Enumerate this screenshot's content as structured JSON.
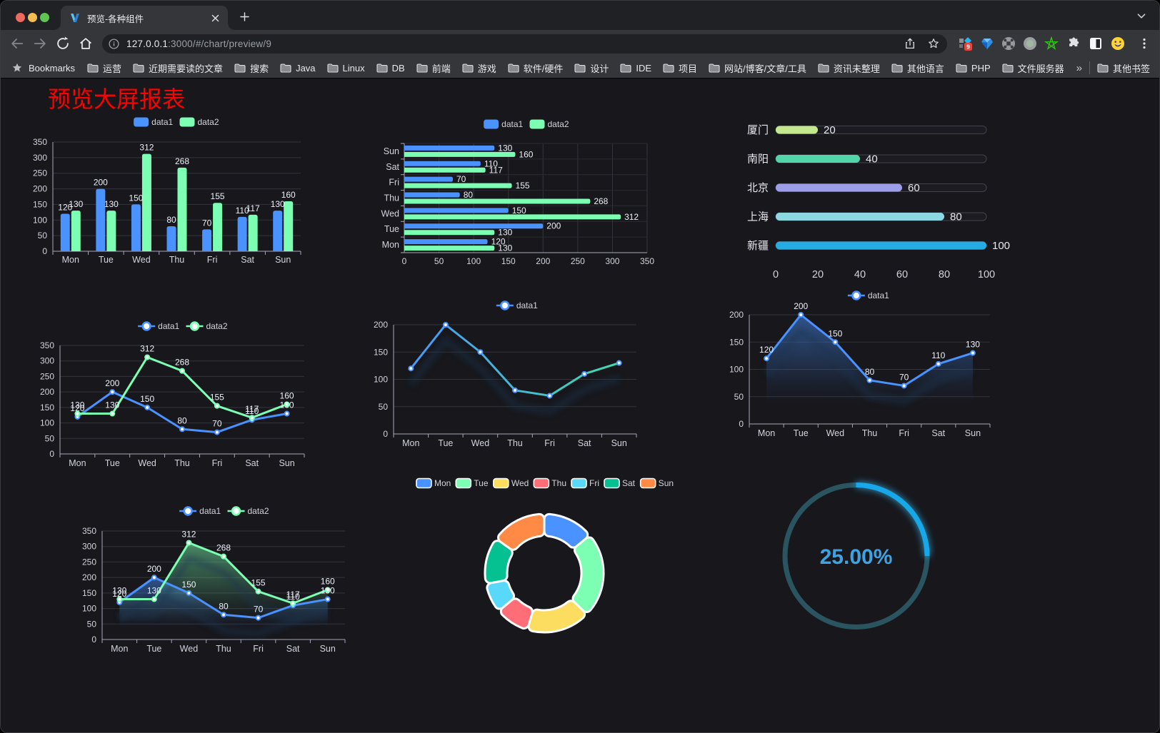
{
  "browser": {
    "tab_title": "预览-各种组件",
    "url_host": "127.0.0.1",
    "url_rest": ":3000/#/chart/preview/9",
    "extension_badge": "9",
    "bookmarks_caption": "Bookmarks",
    "bookmarks": [
      "运营",
      "近期需要读的文章",
      "搜索",
      "Java",
      "Linux",
      "DB",
      "前端",
      "游戏",
      "软件/硬件",
      "设计",
      "IDE",
      "项目",
      "网站/博客/文章/工具",
      "资讯未整理",
      "其他语言",
      "PHP",
      "文件服务器"
    ],
    "bookmarks_overflow": "»",
    "other_bookmarks": "其他书签"
  },
  "page": {
    "title": "预览大屏报表",
    "title_color": "#fe0000",
    "background": "#17171c"
  },
  "palette": {
    "blue": "#4992ff",
    "green": "#7cffb2",
    "yellow": "#fddd60",
    "red": "#ff6e76",
    "cyan": "#58d9f9",
    "teal": "#05c091",
    "orange": "#ff8a45"
  },
  "chart_data": [
    {
      "id": "bar-grouped",
      "type": "bar",
      "categories": [
        "Mon",
        "Tue",
        "Wed",
        "Thu",
        "Fri",
        "Sat",
        "Sun"
      ],
      "series": [
        {
          "name": "data1",
          "color": "#4992ff",
          "values": [
            120,
            200,
            150,
            80,
            70,
            110,
            130
          ]
        },
        {
          "name": "data2",
          "color": "#7cffb2",
          "values": [
            130,
            130,
            312,
            268,
            155,
            117,
            160
          ]
        }
      ],
      "ylim": [
        0,
        350
      ],
      "ystep": 50,
      "legend_position": "top",
      "grid": true
    },
    {
      "id": "bar-horizontal",
      "type": "bar-horizontal",
      "categories": [
        "Mon",
        "Tue",
        "Wed",
        "Thu",
        "Fri",
        "Sat",
        "Sun"
      ],
      "series": [
        {
          "name": "data1",
          "color": "#4992ff",
          "values": [
            120,
            200,
            150,
            80,
            70,
            110,
            130
          ]
        },
        {
          "name": "data2",
          "color": "#7cffb2",
          "values": [
            130,
            130,
            312,
            268,
            155,
            117,
            160
          ]
        }
      ],
      "xlim": [
        0,
        350
      ],
      "xstep": 50,
      "legend_position": "top",
      "grid": true
    },
    {
      "id": "progress-bars",
      "type": "bar-progress",
      "categories": [
        "厦门",
        "南阳",
        "北京",
        "上海",
        "新疆"
      ],
      "values": [
        20,
        40,
        60,
        80,
        100
      ],
      "colors": [
        "#c3e88d",
        "#52d6a9",
        "#9d9eea",
        "#8bd8e2",
        "#25ace3"
      ],
      "xlim": [
        0,
        100
      ],
      "xticks": [
        0,
        20,
        40,
        60,
        80,
        100
      ]
    },
    {
      "id": "line-multi",
      "type": "line",
      "categories": [
        "Mon",
        "Tue",
        "Wed",
        "Thu",
        "Fri",
        "Sat",
        "Sun"
      ],
      "series": [
        {
          "name": "data1",
          "color": "#4992ff",
          "values": [
            120,
            200,
            150,
            80,
            70,
            110,
            130
          ]
        },
        {
          "name": "data2",
          "color": "#7cffb2",
          "values": [
            130,
            130,
            312,
            268,
            155,
            117,
            160
          ]
        }
      ],
      "ylim": [
        0,
        350
      ],
      "ystep": 50,
      "labels": true,
      "legend_position": "top",
      "grid": true
    },
    {
      "id": "line-gradient",
      "type": "line",
      "categories": [
        "Mon",
        "Tue",
        "Wed",
        "Thu",
        "Fri",
        "Sat",
        "Sun"
      ],
      "series": [
        {
          "name": "data1",
          "color": "#4992ff",
          "gradient": [
            "#4992ff",
            "#40e0a6"
          ],
          "values": [
            120,
            200,
            150,
            80,
            70,
            110,
            130
          ]
        }
      ],
      "ylim": [
        0,
        200
      ],
      "ystep": 50,
      "labels": false,
      "legend_position": "top",
      "grid": true,
      "shadow": true
    },
    {
      "id": "area-single",
      "type": "area",
      "categories": [
        "Mon",
        "Tue",
        "Wed",
        "Thu",
        "Fri",
        "Sat",
        "Sun"
      ],
      "series": [
        {
          "name": "data1",
          "color": "#4992ff",
          "values": [
            120,
            200,
            150,
            80,
            70,
            110,
            130
          ]
        }
      ],
      "ylim": [
        0,
        200
      ],
      "ystep": 50,
      "labels": true,
      "legend_position": "top",
      "grid": true,
      "shadow": true
    },
    {
      "id": "area-multi",
      "type": "area",
      "categories": [
        "Mon",
        "Tue",
        "Wed",
        "Thu",
        "Fri",
        "Sat",
        "Sun"
      ],
      "series": [
        {
          "name": "data1",
          "color": "#4992ff",
          "values": [
            120,
            200,
            150,
            80,
            70,
            110,
            130
          ]
        },
        {
          "name": "data2",
          "color": "#7cffb2",
          "values": [
            130,
            130,
            312,
            268,
            155,
            117,
            160
          ]
        }
      ],
      "ylim": [
        0,
        350
      ],
      "ystep": 50,
      "labels": true,
      "legend_position": "top",
      "grid": true,
      "shadow": true
    },
    {
      "id": "donut",
      "type": "pie",
      "categories": [
        "Mon",
        "Tue",
        "Wed",
        "Thu",
        "Fri",
        "Sat",
        "Sun"
      ],
      "values": [
        120,
        200,
        150,
        80,
        70,
        110,
        130
      ],
      "colors": [
        "#4992ff",
        "#7cffb2",
        "#fddd60",
        "#ff6e76",
        "#58d9f9",
        "#05c091",
        "#ff8a45"
      ],
      "legend_position": "top",
      "border_color": "#ffffff"
    },
    {
      "id": "gauge",
      "type": "gauge",
      "value": 25,
      "label": "25.00%",
      "max": 100,
      "color": "#17a8e8",
      "track_color": "#2a5560",
      "text_color": "#3da3e2"
    }
  ]
}
